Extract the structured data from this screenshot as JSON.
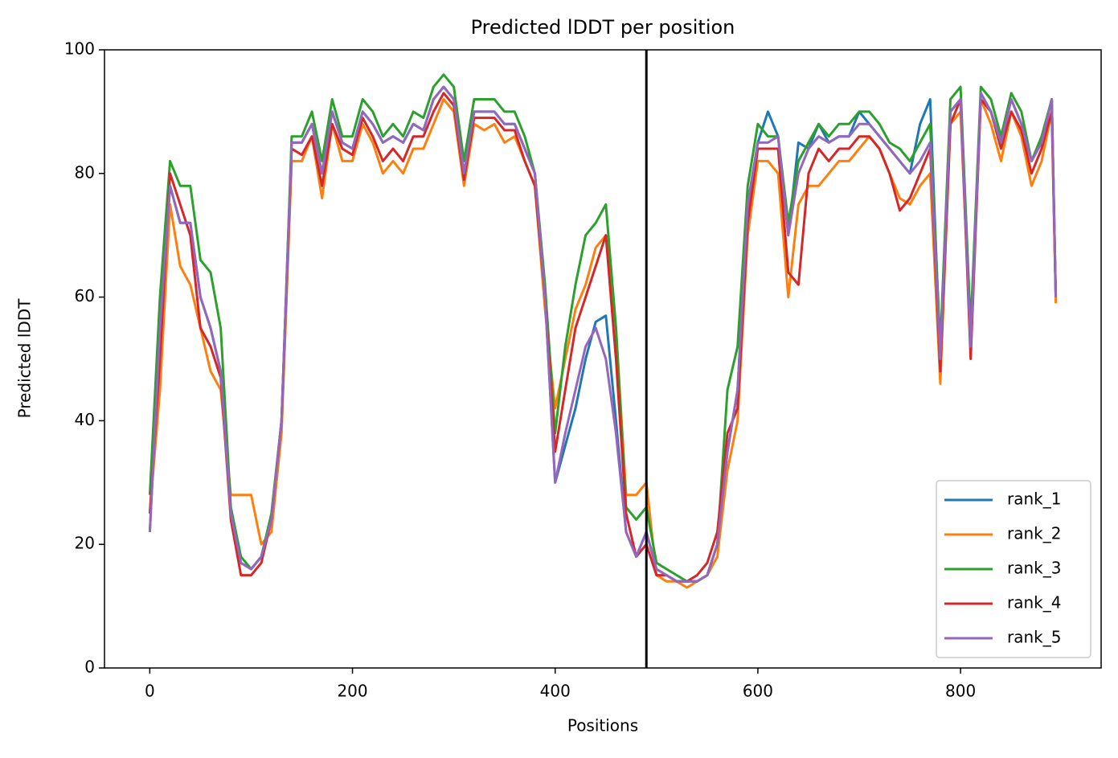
{
  "chart_data": {
    "type": "line",
    "title": "Predicted lDDT per position",
    "xlabel": "Positions",
    "ylabel": "Predicted lDDT",
    "x": [
      0,
      10,
      20,
      30,
      40,
      50,
      60,
      70,
      80,
      90,
      100,
      110,
      120,
      130,
      140,
      150,
      160,
      170,
      180,
      190,
      200,
      210,
      220,
      230,
      240,
      250,
      260,
      270,
      280,
      290,
      300,
      310,
      320,
      330,
      340,
      350,
      360,
      370,
      380,
      390,
      400,
      410,
      420,
      430,
      440,
      450,
      460,
      470,
      480,
      490,
      500,
      510,
      520,
      530,
      540,
      550,
      560,
      570,
      580,
      590,
      600,
      610,
      620,
      630,
      640,
      650,
      660,
      670,
      680,
      690,
      700,
      710,
      720,
      730,
      740,
      750,
      760,
      770,
      780,
      790,
      800,
      810,
      820,
      830,
      840,
      850,
      860,
      870,
      880,
      890,
      894
    ],
    "series": [
      {
        "name": "rank_1",
        "color": "#1f77b4",
        "values": [
          22,
          55,
          78,
          72,
          72,
          60,
          55,
          48,
          25,
          17,
          16,
          18,
          24,
          40,
          85,
          85,
          88,
          80,
          90,
          85,
          84,
          90,
          88,
          85,
          86,
          85,
          88,
          87,
          92,
          94,
          92,
          80,
          90,
          90,
          90,
          88,
          88,
          84,
          80,
          60,
          30,
          36,
          42,
          50,
          56,
          57,
          40,
          22,
          18,
          22,
          16,
          15,
          14,
          14,
          14,
          15,
          20,
          35,
          45,
          75,
          85,
          90,
          86,
          70,
          85,
          84,
          88,
          85,
          86,
          86,
          90,
          88,
          86,
          84,
          82,
          80,
          88,
          92,
          50,
          90,
          92,
          52,
          93,
          90,
          85,
          92,
          88,
          82,
          85,
          92,
          60
        ]
      },
      {
        "name": "rank_2",
        "color": "#ff7f0e",
        "values": [
          25,
          45,
          75,
          65,
          62,
          55,
          48,
          45,
          28,
          28,
          28,
          20,
          22,
          38,
          82,
          82,
          86,
          76,
          88,
          82,
          82,
          88,
          85,
          80,
          82,
          80,
          84,
          84,
          88,
          92,
          90,
          78,
          88,
          87,
          88,
          85,
          86,
          82,
          78,
          58,
          42,
          50,
          58,
          62,
          68,
          70,
          55,
          28,
          28,
          30,
          15,
          14,
          14,
          13,
          14,
          15,
          18,
          32,
          40,
          70,
          82,
          82,
          80,
          60,
          75,
          78,
          78,
          80,
          82,
          82,
          84,
          86,
          84,
          80,
          76,
          75,
          78,
          80,
          46,
          88,
          90,
          52,
          92,
          88,
          82,
          90,
          86,
          78,
          82,
          90,
          59
        ]
      },
      {
        "name": "rank_3",
        "color": "#2ca02c",
        "values": [
          28,
          60,
          82,
          78,
          78,
          66,
          64,
          55,
          26,
          18,
          16,
          18,
          25,
          40,
          86,
          86,
          90,
          82,
          92,
          86,
          86,
          92,
          90,
          86,
          88,
          86,
          90,
          89,
          94,
          96,
          94,
          82,
          92,
          92,
          92,
          90,
          90,
          86,
          80,
          62,
          38,
          52,
          62,
          70,
          72,
          75,
          55,
          26,
          24,
          26,
          17,
          16,
          15,
          14,
          14,
          15,
          20,
          45,
          52,
          78,
          88,
          86,
          86,
          72,
          82,
          85,
          88,
          86,
          88,
          88,
          90,
          90,
          88,
          85,
          84,
          82,
          85,
          88,
          52,
          92,
          94,
          55,
          94,
          92,
          86,
          93,
          90,
          82,
          86,
          92,
          60
        ]
      },
      {
        "name": "rank_4",
        "color": "#d62728",
        "values": [
          25,
          50,
          80,
          75,
          70,
          55,
          52,
          47,
          24,
          15,
          15,
          17,
          24,
          40,
          84,
          83,
          86,
          78,
          88,
          84,
          83,
          89,
          86,
          82,
          84,
          82,
          86,
          86,
          90,
          93,
          91,
          79,
          89,
          89,
          89,
          87,
          87,
          82,
          78,
          60,
          35,
          45,
          55,
          60,
          65,
          70,
          50,
          25,
          18,
          20,
          15,
          15,
          14,
          14,
          15,
          17,
          22,
          38,
          42,
          72,
          84,
          84,
          84,
          64,
          62,
          80,
          84,
          82,
          84,
          84,
          86,
          86,
          84,
          80,
          74,
          76,
          80,
          84,
          48,
          88,
          92,
          50,
          92,
          90,
          84,
          90,
          87,
          80,
          84,
          90,
          60
        ]
      },
      {
        "name": "rank_5",
        "color": "#9467bd",
        "values": [
          22,
          55,
          78,
          72,
          72,
          60,
          55,
          48,
          25,
          17,
          16,
          18,
          24,
          40,
          85,
          85,
          88,
          80,
          90,
          85,
          84,
          90,
          88,
          85,
          86,
          85,
          88,
          87,
          92,
          94,
          92,
          80,
          90,
          90,
          90,
          88,
          88,
          84,
          80,
          60,
          30,
          38,
          45,
          52,
          55,
          50,
          38,
          22,
          18,
          22,
          16,
          15,
          14,
          14,
          14,
          15,
          20,
          35,
          45,
          75,
          85,
          85,
          86,
          70,
          80,
          84,
          86,
          85,
          86,
          86,
          88,
          88,
          86,
          84,
          82,
          80,
          82,
          85,
          50,
          90,
          92,
          52,
          93,
          90,
          85,
          92,
          88,
          82,
          85,
          92,
          60
        ]
      }
    ],
    "vline": 490,
    "vline_color": "#000000",
    "xlim": [
      -44.7,
      938.7
    ],
    "xticks": [
      0,
      200,
      400,
      600,
      800
    ],
    "ylim": [
      0,
      100
    ],
    "yticks": [
      0,
      20,
      40,
      60,
      80,
      100
    ],
    "grid": false,
    "legend": "lower right"
  }
}
